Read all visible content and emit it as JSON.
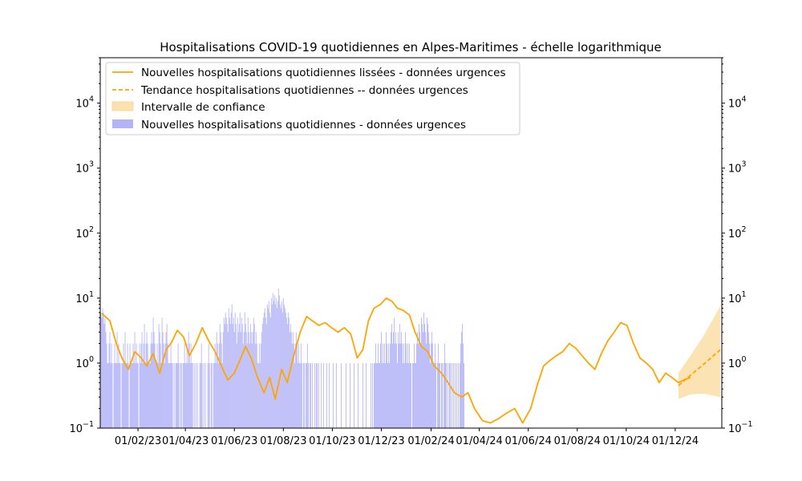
{
  "chart_data": {
    "type": "bar",
    "title": "Hospitalisations COVID-19 quotidiennes en Alpes-Maritimes - échelle logarithmique",
    "xlabel": "",
    "ylabel": "",
    "yscale": "log",
    "ylim": [
      0.1,
      50000
    ],
    "xlim": [
      "2022-12-16",
      "2025-01-28"
    ],
    "grid": false,
    "legend_position": "top-left",
    "x_ticks": [
      "01/02/23",
      "01/04/23",
      "01/06/23",
      "01/08/23",
      "01/10/23",
      "01/12/23",
      "01/02/24",
      "01/04/24",
      "01/06/24",
      "01/08/24",
      "01/10/24",
      "01/12/24"
    ],
    "x_tick_dates": [
      "2023-02-01",
      "2023-04-01",
      "2023-06-01",
      "2023-08-01",
      "2023-10-01",
      "2023-12-01",
      "2024-02-01",
      "2024-04-01",
      "2024-06-01",
      "2024-08-01",
      "2024-10-01",
      "2024-12-01"
    ],
    "y_ticks": [
      {
        "base": "10",
        "exp": "−1",
        "value": 0.1
      },
      {
        "base": "10",
        "exp": "0",
        "value": 1
      },
      {
        "base": "10",
        "exp": "1",
        "value": 10
      },
      {
        "base": "10",
        "exp": "2",
        "value": 100
      },
      {
        "base": "10",
        "exp": "3",
        "value": 1000
      },
      {
        "base": "10",
        "exp": "4",
        "value": 10000
      }
    ],
    "colors": {
      "bars": "#b3b3f7",
      "smoothed": "#ffa500",
      "trend": "#ffa500",
      "confidence": "#fbd99b"
    },
    "series": [
      {
        "name": "Nouvelles hospitalisations quotidiennes lissées - données urgences",
        "kind": "line",
        "points": [
          [
            "2022-12-18",
            5.8
          ],
          [
            "2022-12-28",
            4.5
          ],
          [
            "2023-01-05",
            2.0
          ],
          [
            "2023-01-12",
            1.2
          ],
          [
            "2023-01-20",
            0.8
          ],
          [
            "2023-01-28",
            1.5
          ],
          [
            "2023-02-05",
            1.2
          ],
          [
            "2023-02-12",
            0.9
          ],
          [
            "2023-02-20",
            1.4
          ],
          [
            "2023-02-28",
            0.7
          ],
          [
            "2023-03-08",
            1.6
          ],
          [
            "2023-03-15",
            2.1
          ],
          [
            "2023-03-22",
            3.2
          ],
          [
            "2023-03-30",
            2.5
          ],
          [
            "2023-04-06",
            1.3
          ],
          [
            "2023-04-14",
            2.0
          ],
          [
            "2023-04-22",
            3.5
          ],
          [
            "2023-04-30",
            2.2
          ],
          [
            "2023-05-08",
            1.5
          ],
          [
            "2023-05-16",
            0.9
          ],
          [
            "2023-05-24",
            0.55
          ],
          [
            "2023-06-01",
            0.7
          ],
          [
            "2023-06-08",
            1.1
          ],
          [
            "2023-06-15",
            1.8
          ],
          [
            "2023-06-22",
            1.2
          ],
          [
            "2023-06-30",
            0.6
          ],
          [
            "2023-07-08",
            0.35
          ],
          [
            "2023-07-15",
            0.6
          ],
          [
            "2023-07-22",
            0.28
          ],
          [
            "2023-07-30",
            0.8
          ],
          [
            "2023-08-06",
            0.5
          ],
          [
            "2023-08-14",
            1.3
          ],
          [
            "2023-08-22",
            3.0
          ],
          [
            "2023-08-30",
            5.2
          ],
          [
            "2023-09-06",
            4.5
          ],
          [
            "2023-09-14",
            3.8
          ],
          [
            "2023-09-22",
            4.2
          ],
          [
            "2023-09-30",
            3.5
          ],
          [
            "2023-10-08",
            3.0
          ],
          [
            "2023-10-16",
            3.5
          ],
          [
            "2023-10-24",
            2.8
          ],
          [
            "2023-11-01",
            1.2
          ],
          [
            "2023-11-08",
            1.6
          ],
          [
            "2023-11-15",
            4.5
          ],
          [
            "2023-11-22",
            7.0
          ],
          [
            "2023-11-30",
            8.0
          ],
          [
            "2023-12-07",
            10.0
          ],
          [
            "2023-12-14",
            9.0
          ],
          [
            "2023-12-21",
            7.0
          ],
          [
            "2023-12-28",
            6.5
          ],
          [
            "2024-01-05",
            5.5
          ],
          [
            "2024-01-12",
            3.0
          ],
          [
            "2024-01-20",
            1.8
          ],
          [
            "2024-01-28",
            1.5
          ],
          [
            "2024-02-05",
            0.9
          ],
          [
            "2024-02-14",
            0.7
          ],
          [
            "2024-02-22",
            0.5
          ],
          [
            "2024-03-01",
            0.35
          ],
          [
            "2024-03-10",
            0.3
          ],
          [
            "2024-03-18",
            0.35
          ],
          [
            "2024-03-26",
            0.2
          ],
          [
            "2024-04-05",
            0.13
          ],
          [
            "2024-04-15",
            0.12
          ],
          [
            "2024-04-25",
            0.14
          ],
          [
            "2024-05-05",
            0.17
          ],
          [
            "2024-05-15",
            0.2
          ],
          [
            "2024-05-25",
            0.12
          ],
          [
            "2024-06-04",
            0.2
          ],
          [
            "2024-06-12",
            0.45
          ],
          [
            "2024-06-20",
            0.9
          ],
          [
            "2024-06-28",
            1.1
          ],
          [
            "2024-07-06",
            1.3
          ],
          [
            "2024-07-14",
            1.5
          ],
          [
            "2024-07-22",
            2.0
          ],
          [
            "2024-07-30",
            1.7
          ],
          [
            "2024-08-07",
            1.3
          ],
          [
            "2024-08-15",
            1.0
          ],
          [
            "2024-08-23",
            0.8
          ],
          [
            "2024-08-31",
            1.4
          ],
          [
            "2024-09-08",
            2.2
          ],
          [
            "2024-09-16",
            3.0
          ],
          [
            "2024-09-24",
            4.2
          ],
          [
            "2024-10-02",
            3.8
          ],
          [
            "2024-10-10",
            2.0
          ],
          [
            "2024-10-18",
            1.2
          ],
          [
            "2024-10-26",
            1.0
          ],
          [
            "2024-11-03",
            0.8
          ],
          [
            "2024-11-11",
            0.5
          ],
          [
            "2024-11-19",
            0.7
          ],
          [
            "2024-11-27",
            0.6
          ],
          [
            "2024-12-05",
            0.5
          ],
          [
            "2024-12-12",
            0.55
          ],
          [
            "2024-12-20",
            0.6
          ]
        ]
      },
      {
        "name": "Tendance hospitalisations quotidiennes -- données urgences",
        "kind": "dashed-line",
        "points": [
          [
            "2024-12-05",
            0.45
          ],
          [
            "2024-12-20",
            0.65
          ],
          [
            "2025-01-05",
            0.95
          ],
          [
            "2025-01-26",
            1.6
          ]
        ]
      },
      {
        "name": "Intervalle de confiance",
        "kind": "band",
        "upper": [
          [
            "2024-12-05",
            0.7
          ],
          [
            "2024-12-20",
            1.3
          ],
          [
            "2025-01-05",
            2.6
          ],
          [
            "2025-01-26",
            7.5
          ]
        ],
        "lower": [
          [
            "2024-12-05",
            0.28
          ],
          [
            "2024-12-20",
            0.33
          ],
          [
            "2025-01-05",
            0.34
          ],
          [
            "2025-01-26",
            0.3
          ]
        ]
      },
      {
        "name": "Nouvelles hospitalisations quotidiennes - données urgences",
        "kind": "bars",
        "start_date": "2022-12-17",
        "note": "daily counts",
        "values": [
          6,
          5,
          7,
          6,
          4,
          5,
          3,
          2,
          1,
          1,
          2,
          3,
          1,
          2,
          1,
          0,
          1,
          2,
          1,
          1,
          3,
          1,
          2,
          1,
          1,
          0,
          1,
          1,
          2,
          1,
          3,
          1,
          1,
          2,
          1,
          0,
          2,
          1,
          1,
          1,
          2,
          1,
          3,
          1,
          2,
          1,
          1,
          0,
          2,
          1,
          2,
          3,
          1,
          2,
          4,
          1,
          2,
          3,
          2,
          1,
          1,
          1,
          2,
          3,
          2,
          5,
          3,
          2,
          1,
          1,
          2,
          1,
          4,
          3,
          2,
          1,
          5,
          3,
          2,
          1,
          2,
          3,
          4,
          2,
          1,
          1,
          1,
          2,
          1,
          1,
          0,
          1,
          0,
          1,
          1,
          1,
          2,
          1,
          0,
          1,
          1,
          0,
          1,
          1,
          2,
          1,
          1,
          2,
          1,
          3,
          2,
          1,
          2,
          1,
          1,
          0,
          1,
          0,
          1,
          0,
          1,
          0,
          0,
          1,
          1,
          2,
          1,
          0,
          1,
          0,
          1,
          0,
          0,
          1,
          2,
          1,
          0,
          1,
          1,
          0,
          1,
          1,
          2,
          1,
          3,
          2,
          1,
          2,
          4,
          3,
          2,
          1,
          3,
          5,
          4,
          6,
          5,
          4,
          3,
          7,
          5,
          4,
          6,
          8,
          4,
          5,
          3,
          6,
          4,
          2,
          5,
          3,
          4,
          6,
          3,
          5,
          4,
          2,
          3,
          6,
          4,
          3,
          2,
          5,
          3,
          2,
          4,
          3,
          2,
          3,
          5,
          4,
          2,
          3,
          2,
          1,
          1,
          2,
          1,
          2,
          3,
          4,
          5,
          6,
          7,
          5,
          4,
          8,
          7,
          9,
          6,
          5,
          10,
          8,
          12,
          9,
          11,
          8,
          10,
          7,
          9,
          14,
          11,
          8,
          7,
          9,
          6,
          10,
          8,
          7,
          6,
          5,
          4,
          6,
          5,
          3,
          4,
          3,
          2,
          3,
          2,
          1,
          2,
          3,
          2,
          1,
          2,
          1,
          1,
          2,
          1,
          0,
          1,
          1,
          0,
          1,
          1,
          2,
          1,
          0,
          1,
          1,
          0,
          1,
          0,
          0,
          1,
          0,
          1,
          1,
          0,
          1,
          0,
          0,
          1,
          0,
          0,
          1,
          0,
          0,
          0,
          1,
          0,
          0,
          1,
          0,
          0,
          0,
          0,
          1,
          0,
          0,
          0,
          1,
          0,
          0,
          0,
          0,
          0,
          1,
          0,
          0,
          0,
          0,
          0,
          1,
          0,
          0,
          0,
          0,
          1,
          0,
          0,
          0,
          0,
          1,
          0,
          0,
          0,
          0,
          1,
          0,
          0,
          0,
          0,
          0,
          1,
          0,
          0,
          0,
          1,
          0,
          0,
          0,
          0,
          0,
          1,
          0,
          1,
          0,
          1,
          1,
          2,
          1,
          1,
          2,
          1,
          1,
          2,
          3,
          1,
          2,
          1,
          2,
          1,
          3,
          2,
          1,
          2,
          1,
          2,
          3,
          4,
          2,
          3,
          5,
          2,
          3,
          2,
          1,
          3,
          2,
          4,
          2,
          3,
          2,
          1,
          2,
          1,
          3,
          2,
          1,
          2,
          1,
          2,
          1,
          1,
          0,
          1,
          1,
          2,
          1,
          1,
          2,
          3,
          2,
          4,
          3,
          2,
          5,
          4,
          3,
          6,
          4,
          3,
          2,
          5,
          4,
          3,
          2,
          1,
          2,
          3,
          2,
          1,
          1,
          2,
          1,
          0,
          1,
          2,
          1,
          1,
          0,
          1,
          1,
          0,
          1,
          2,
          1,
          1,
          0,
          1,
          0,
          1,
          1,
          0,
          1,
          0,
          1,
          0,
          1,
          0,
          1,
          0,
          1,
          0,
          1,
          2,
          3,
          4,
          2,
          1,
          0
        ]
      }
    ]
  }
}
